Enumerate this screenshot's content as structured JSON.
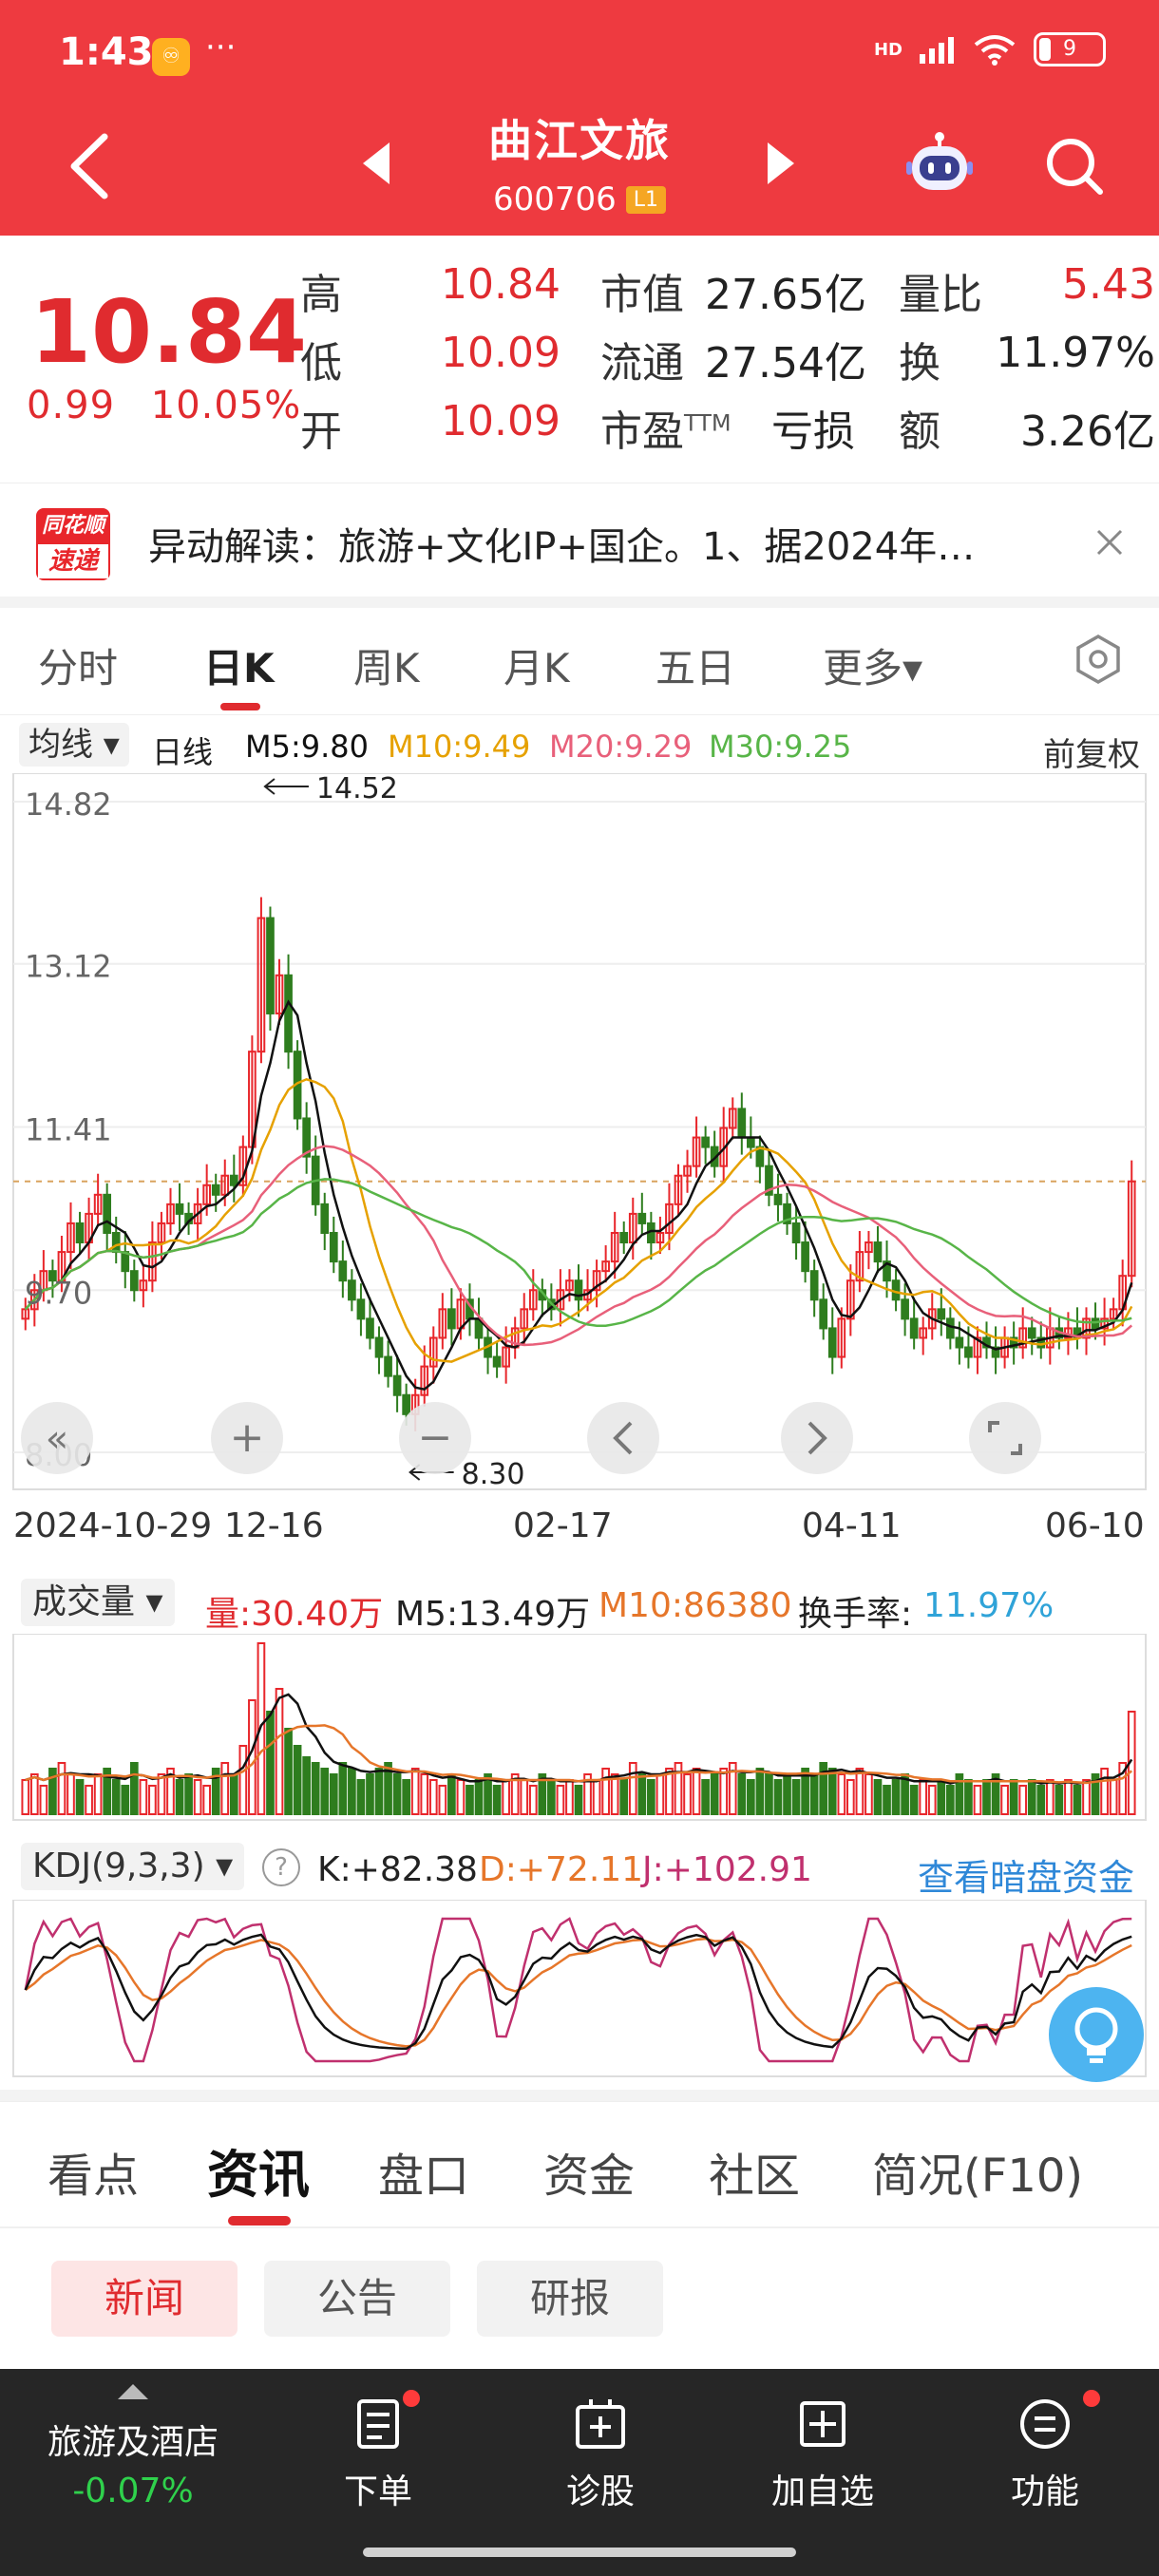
{
  "status_bar": {
    "time": "1:43",
    "app_icon": "♾",
    "more": "···",
    "network": "HD",
    "battery": "9"
  },
  "header": {
    "stock_name": "曲江文旅",
    "stock_code": "600706",
    "level_badge": "L1"
  },
  "quote": {
    "price": "10.84",
    "change": "0.99",
    "change_pct": "10.05%",
    "high_label": "高",
    "high": "10.84",
    "low_label": "低",
    "low": "10.09",
    "open_label": "开",
    "open": "10.09",
    "mktcap_label": "市值",
    "mktcap": "27.65亿",
    "float_label": "流通",
    "float": "27.54亿",
    "pe_label": "市盈",
    "pe_sup": "TTM",
    "pe": "亏损",
    "vol_ratio_label": "量比",
    "vol_ratio": "5.43",
    "turnover_label": "换",
    "turnover": "11.97%",
    "amount_label": "额",
    "amount": "3.26亿"
  },
  "news_banner": {
    "logo_top": "同花顺",
    "logo_bottom": "速递",
    "text": "异动解读：旅游+文化IP+国企。1、据2024年…",
    "close": "×"
  },
  "period_tabs": [
    {
      "label": "分时"
    },
    {
      "label": "日K"
    },
    {
      "label": "周K"
    },
    {
      "label": "月K"
    },
    {
      "label": "五日"
    },
    {
      "label": "更多▾"
    }
  ],
  "ma_legend": {
    "select": "均线 ▾",
    "line_type": "日线",
    "m5": "M5:9.80",
    "m10": "M10:9.49",
    "m20": "M20:9.29",
    "m30": "M30:9.25",
    "adjust": "前复权"
  },
  "colors": {
    "up": "#e8262b",
    "down": "#2e7d1e",
    "m5": "#111111",
    "m10": "#e6a100",
    "m20": "#e8607a",
    "m30": "#58b548",
    "brand": "#ee3a40"
  },
  "chart_data": [
    {
      "type": "candlestick",
      "title": "",
      "y_ticks": [
        "14.82",
        "13.12",
        "11.41",
        "9.70",
        "8.00"
      ],
      "ylim": [
        8.0,
        14.82
      ],
      "x_ticks": [
        "2024-10-29",
        "12-16",
        "02-17",
        "04-11",
        "06-10"
      ],
      "annotations": {
        "high": "14.52",
        "low": "8.30"
      },
      "last_close": 10.84,
      "series": [
        {
          "name": "M5",
          "value": 9.8
        },
        {
          "name": "M10",
          "value": 9.49
        },
        {
          "name": "M20",
          "value": 9.29
        },
        {
          "name": "M30",
          "value": 9.25
        }
      ],
      "closes": [
        9.5,
        9.7,
        9.9,
        9.8,
        10.1,
        10.4,
        10.2,
        10.5,
        10.7,
        10.3,
        10.1,
        9.9,
        9.7,
        9.8,
        10.2,
        10.4,
        10.6,
        10.5,
        10.4,
        10.6,
        10.8,
        10.7,
        10.9,
        10.8,
        11.2,
        12.2,
        13.6,
        12.6,
        13.0,
        12.2,
        11.5,
        11.1,
        10.6,
        10.3,
        10.0,
        9.8,
        9.6,
        9.4,
        9.2,
        9.0,
        8.8,
        8.6,
        8.4,
        8.6,
        8.9,
        9.2,
        9.5,
        9.3,
        9.6,
        9.4,
        9.2,
        9.0,
        8.9,
        9.1,
        9.3,
        9.5,
        9.7,
        9.6,
        9.5,
        9.7,
        9.8,
        9.6,
        9.7,
        9.9,
        10.0,
        10.3,
        10.2,
        10.5,
        10.4,
        10.2,
        10.3,
        10.6,
        10.9,
        11.0,
        11.3,
        11.2,
        11.0,
        11.4,
        11.6,
        11.3,
        11.2,
        11.0,
        10.7,
        10.6,
        10.4,
        10.2,
        9.9,
        9.6,
        9.3,
        9.0,
        9.4,
        9.8,
        10.1,
        10.2,
        10.0,
        9.8,
        9.6,
        9.4,
        9.2,
        9.3,
        9.5,
        9.4,
        9.2,
        9.1,
        9.0,
        9.2,
        9.1,
        9.0,
        9.2,
        9.1,
        9.3,
        9.2,
        9.1,
        9.3,
        9.2,
        9.3,
        9.2,
        9.4,
        9.3,
        9.4,
        9.5,
        9.85,
        10.84
      ]
    },
    {
      "type": "bar",
      "title": "",
      "select": "成交量 ▾",
      "volume": "量:30.40万",
      "m5": "M5:13.49万",
      "m10": "M10:86380",
      "turnover_label": "换手率:",
      "turnover": "11.97%",
      "values": [
        6,
        7,
        5,
        8,
        9,
        7,
        6,
        5,
        7,
        8,
        6,
        5,
        9,
        6,
        5,
        7,
        8,
        6,
        7,
        6,
        5,
        8,
        9,
        7,
        12,
        20,
        30,
        18,
        22,
        15,
        12,
        10,
        9,
        8,
        7,
        9,
        8,
        6,
        7,
        8,
        9,
        7,
        6,
        8,
        7,
        6,
        5,
        7,
        6,
        5,
        6,
        7,
        5,
        6,
        7,
        6,
        5,
        7,
        6,
        5,
        6,
        5,
        7,
        6,
        8,
        7,
        6,
        9,
        7,
        6,
        7,
        8,
        9,
        7,
        8,
        6,
        7,
        8,
        9,
        7,
        6,
        8,
        7,
        6,
        7,
        6,
        8,
        7,
        9,
        8,
        7,
        6,
        8,
        7,
        6,
        5,
        6,
        7,
        5,
        6,
        5,
        6,
        5,
        7,
        6,
        5,
        6,
        7,
        5,
        6,
        5,
        6,
        5,
        6,
        5,
        6,
        5,
        6,
        7,
        8,
        6,
        9,
        18
      ]
    },
    {
      "type": "line",
      "title": "",
      "select": "KDJ(9,3,3) ▾",
      "help": "?",
      "k": "K:+82.38",
      "d": "D:+72.11",
      "j": "J:+102.91",
      "link": "查看暗盘资金"
    }
  ],
  "info_tabs": [
    {
      "label": "看点"
    },
    {
      "label": "资讯"
    },
    {
      "label": "盘口"
    },
    {
      "label": "资金"
    },
    {
      "label": "社区"
    },
    {
      "label": "简况(F10)"
    }
  ],
  "sub_tabs": [
    {
      "label": "新闻"
    },
    {
      "label": "公告"
    },
    {
      "label": "研报"
    }
  ],
  "bottom_bar": {
    "sector_name": "旅游及酒店",
    "sector_change": "-0.07%",
    "items": [
      {
        "label": "下单"
      },
      {
        "label": "诊股"
      },
      {
        "label": "加自选"
      },
      {
        "label": "功能"
      }
    ]
  }
}
